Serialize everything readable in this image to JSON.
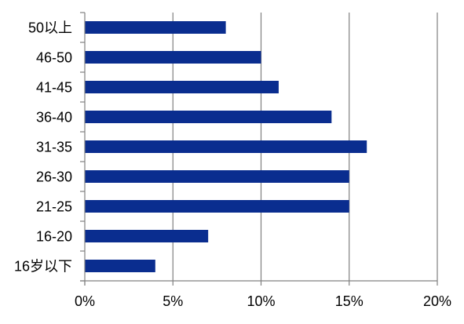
{
  "chart_data": {
    "type": "bar",
    "orientation": "horizontal",
    "categories": [
      "50以上",
      "46-50",
      "41-45",
      "36-40",
      "31-35",
      "26-30",
      "21-25",
      "16-20",
      "16岁以下"
    ],
    "values": [
      8,
      10,
      11,
      14,
      16,
      15,
      15,
      7,
      4
    ],
    "value_unit": "%",
    "xlim": [
      0,
      20
    ],
    "x_ticks": [
      "0%",
      "5%",
      "10%",
      "15%",
      "20%"
    ],
    "x_tick_values": [
      0,
      5,
      10,
      15,
      20
    ],
    "title": "",
    "xlabel": "",
    "ylabel": "",
    "grid": "vertical",
    "legend": "none",
    "bar_color": "#0A2D8F",
    "grid_color": "#808080",
    "axis_color": "#808080"
  }
}
